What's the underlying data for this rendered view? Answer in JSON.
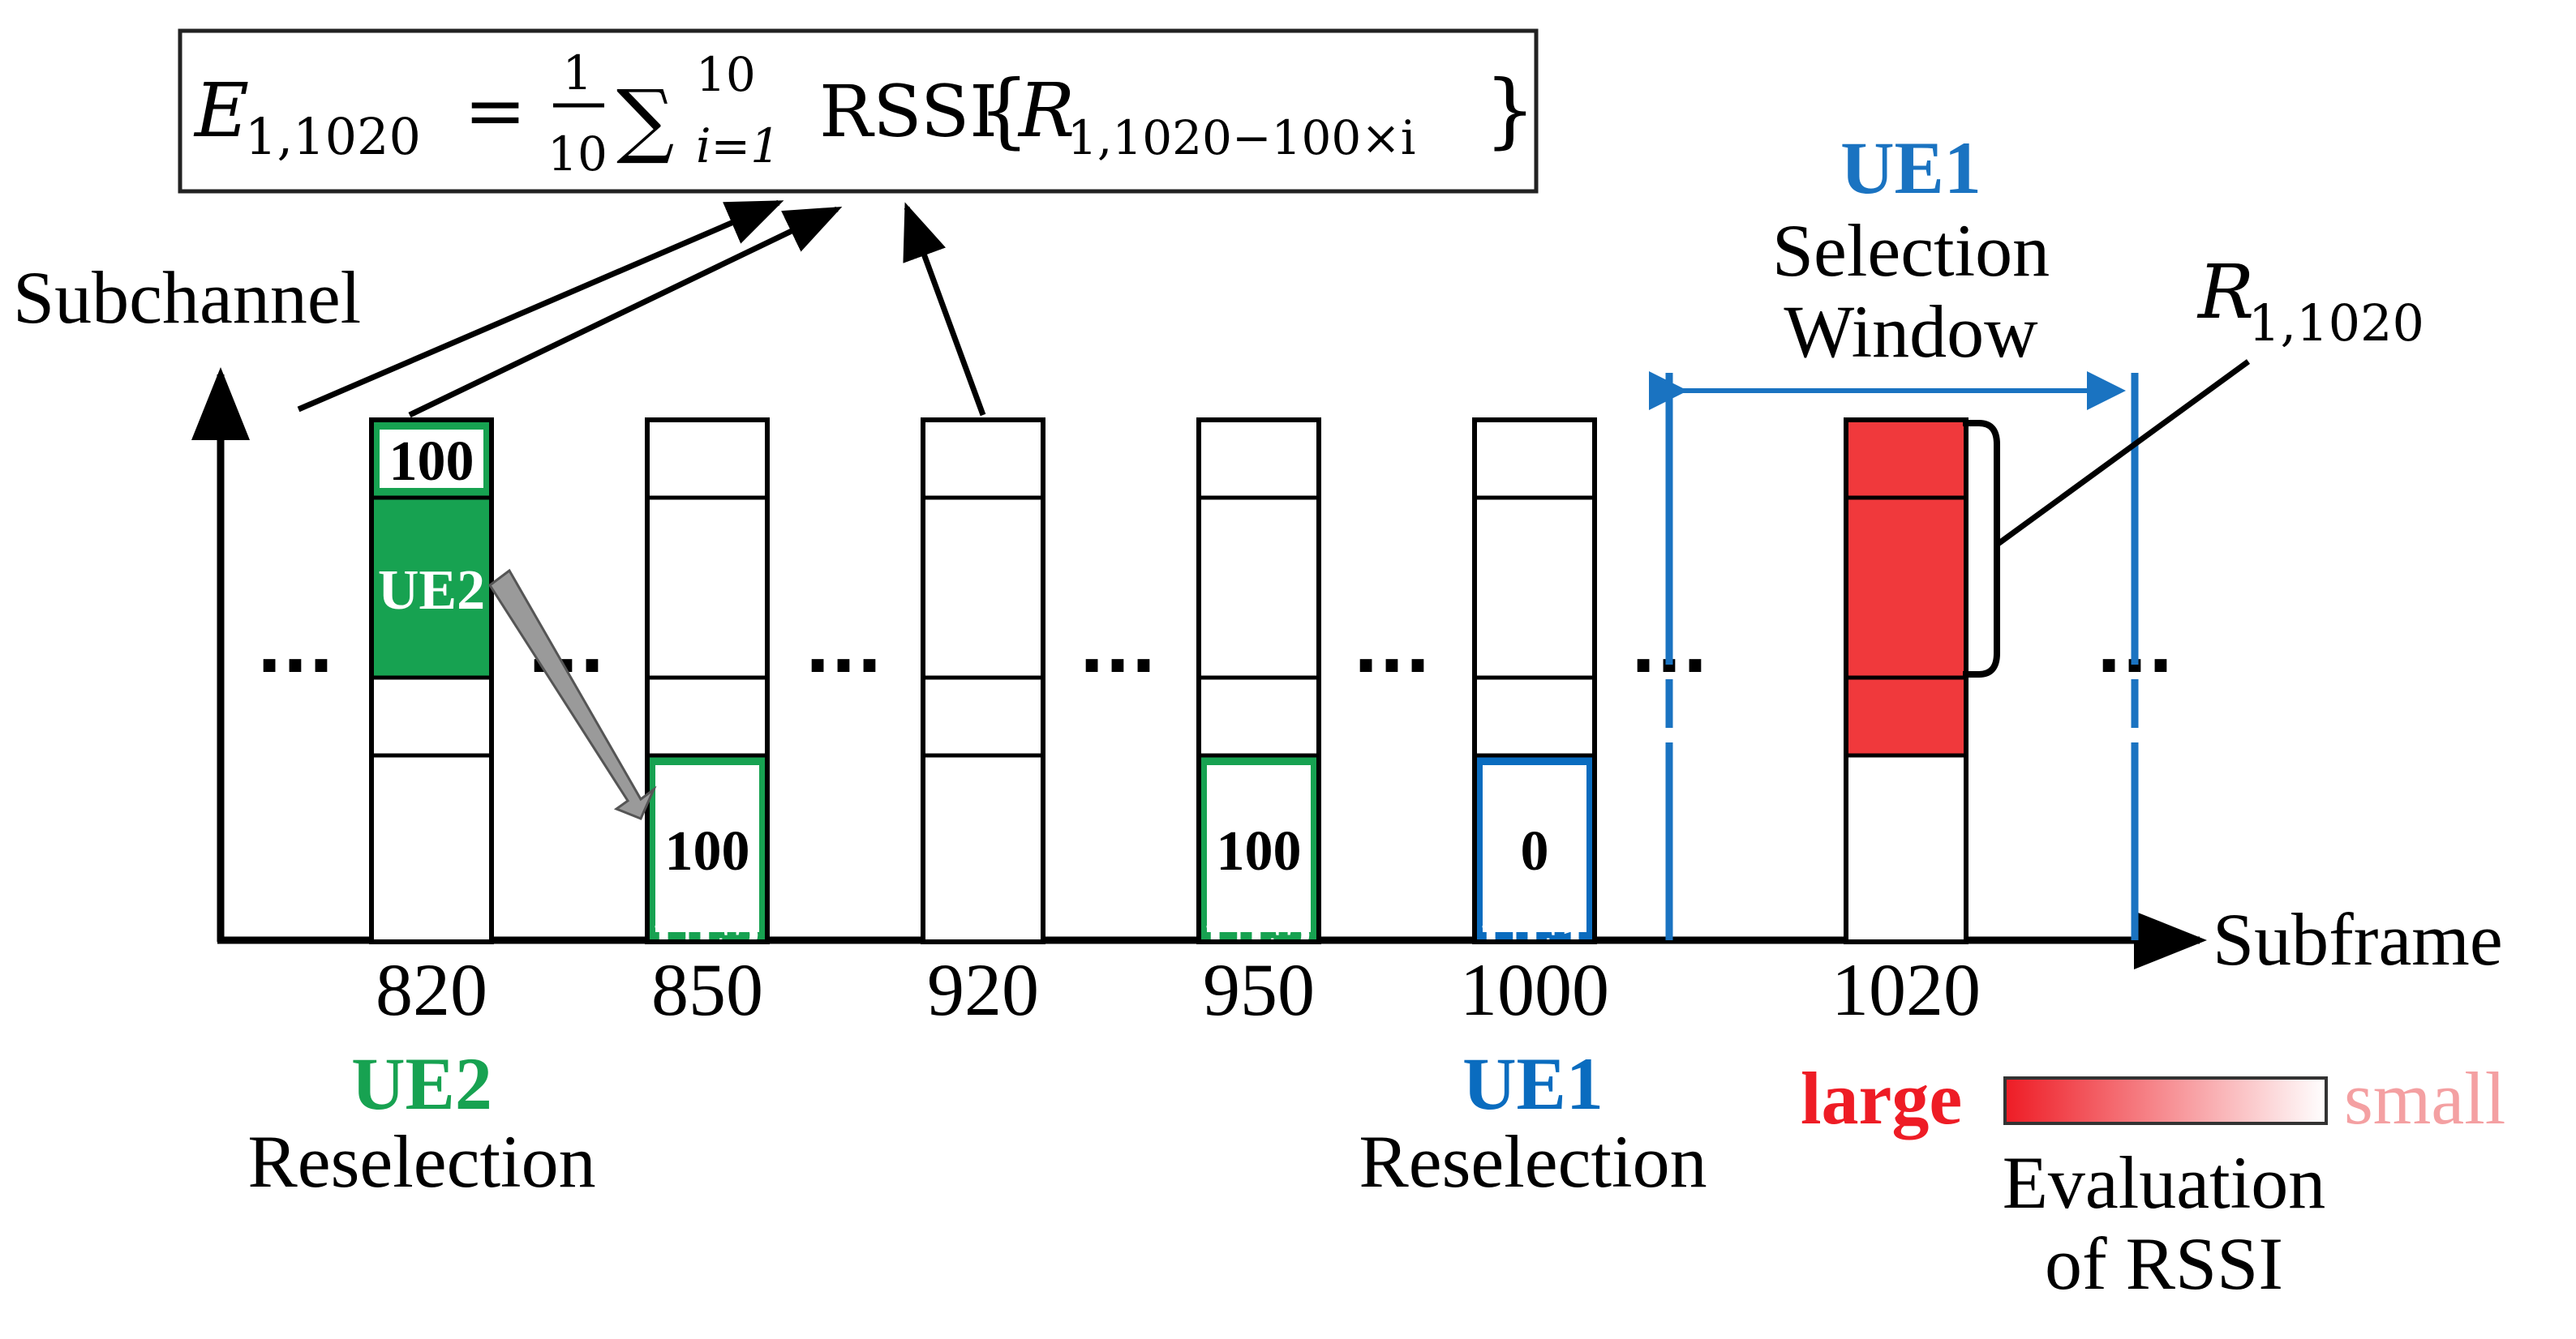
{
  "formula": {
    "lhs": "E",
    "lhs_sub": "1,1020",
    "equals": "=",
    "frac_num": "1",
    "frac_den": "10",
    "sigma": "∑",
    "sum_upper": "10",
    "sum_lower": "i=1",
    "func": "RSSI",
    "lbrace": "{",
    "arg": "R",
    "arg_sub": "1,1020−100×i",
    "rbrace": "}"
  },
  "axes": {
    "y_label": "Subchannel",
    "x_label": "Subframe"
  },
  "ellipsis": "···",
  "columns": [
    {
      "subframe": "820",
      "cell_top": "100",
      "cell_top_row": 0,
      "ue": "UE2",
      "ue_color": "green"
    },
    {
      "subframe": "850",
      "cell_top": "100",
      "cell_top_row": 3,
      "ue": "UE2",
      "ue_color": "green"
    },
    {
      "subframe": "920"
    },
    {
      "subframe": "950",
      "cell_top": "100",
      "cell_top_row": 3,
      "ue": "UE2",
      "ue_color": "green"
    },
    {
      "subframe": "1000",
      "cell_top": "0",
      "cell_top_row": 3,
      "ue": "UE1",
      "ue_color": "blue"
    },
    {
      "subframe": "1020",
      "red_rows": [
        0,
        1,
        2
      ]
    }
  ],
  "below_axis": {
    "ue2_name": "UE2",
    "ue2_action": "Reselection",
    "ue1_name": "UE1",
    "ue1_action": "Reselection"
  },
  "selection_window": {
    "ue": "UE1",
    "line1": "Selection",
    "line2": "Window"
  },
  "resource_label": {
    "symbol": "R",
    "sub": "1,1020"
  },
  "legend": {
    "large": "large",
    "small": "small",
    "caption1": "Evaluation",
    "caption2": "of RSSI"
  },
  "colors": {
    "green": "#17a251",
    "blue": "#0a6cbf",
    "window_blue": "#1a73c1",
    "red": "#f0393c",
    "red_text": "#ee1c25",
    "pink_text": "#f4a0a2",
    "arrow_gray": "#9a9a9a",
    "black": "#000000"
  }
}
